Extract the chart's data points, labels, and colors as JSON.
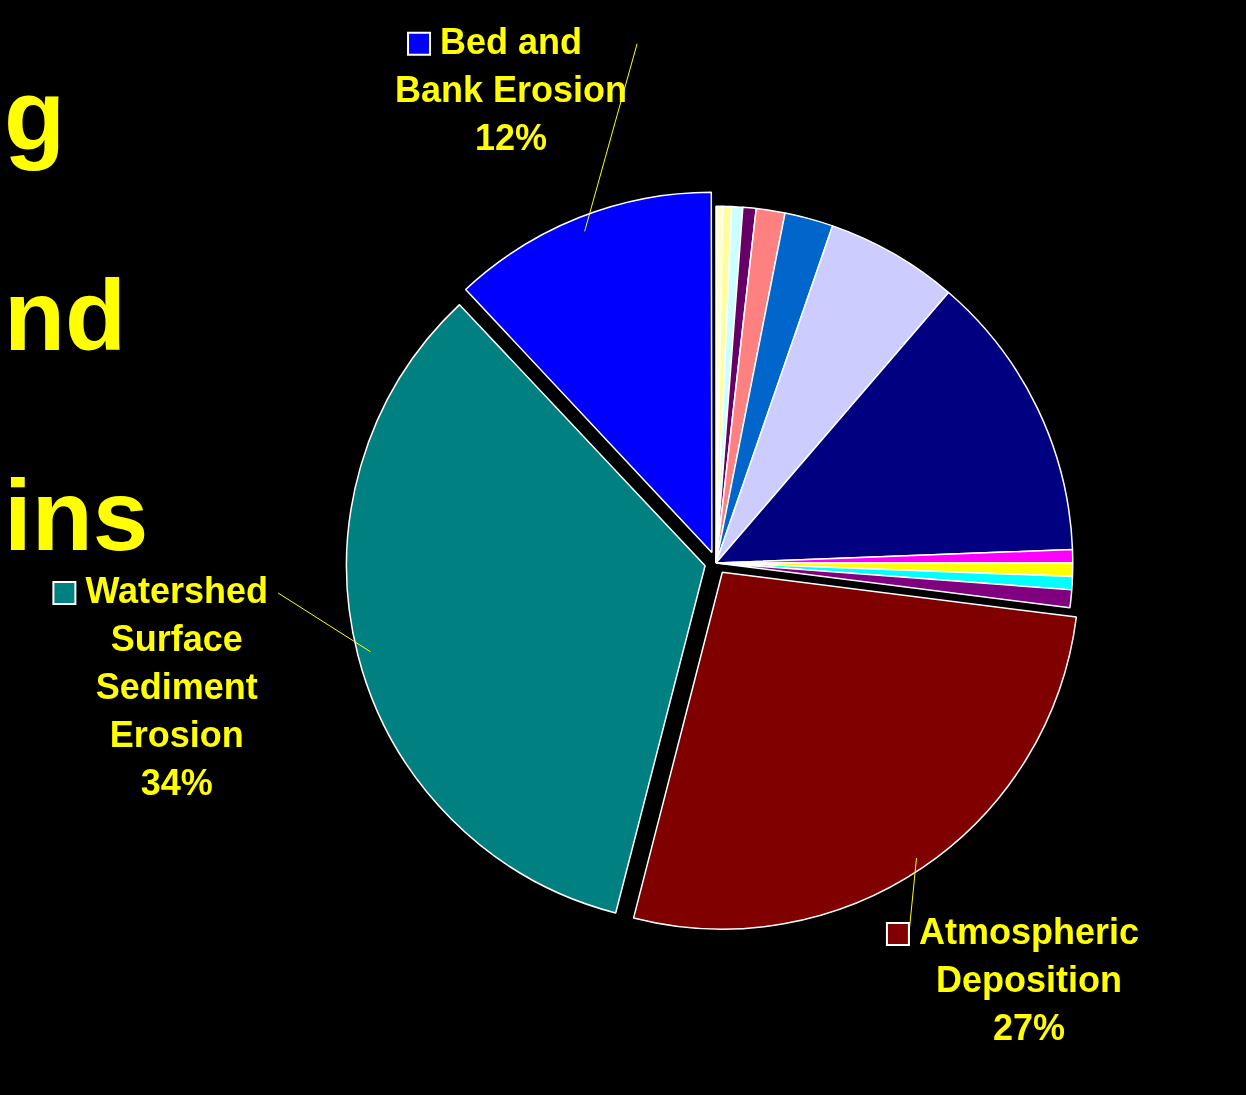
{
  "chart_data": {
    "type": "pie",
    "categories": [
      null,
      null,
      null,
      null,
      null,
      null,
      null,
      null,
      null,
      null,
      null,
      null,
      "Atmospheric Deposition",
      "Watershed Surface Sediment Erosion",
      "Bed and Bank Erosion"
    ],
    "values": [
      0.3,
      0.4,
      0.5,
      0.6,
      1.3,
      2.2,
      6,
      13.1,
      0.6,
      0.6,
      0.6,
      0.8,
      27,
      34,
      12
    ],
    "colors": [
      "#ffffcc",
      "#ffff99",
      "#ccffff",
      "#660066",
      "#ff8080",
      "#0066cc",
      "#ccccff",
      "#000080",
      "#ff00ff",
      "#ffff00",
      "#00ffff",
      "#800080",
      "#800000",
      "#008080",
      "#0000ff"
    ],
    "value_labels": [
      null,
      null,
      null,
      null,
      null,
      null,
      null,
      null,
      null,
      null,
      null,
      null,
      "27%",
      "34%",
      "12%"
    ],
    "annotations": [
      "g",
      "nd",
      "ins"
    ],
    "legend": "left"
  }
}
